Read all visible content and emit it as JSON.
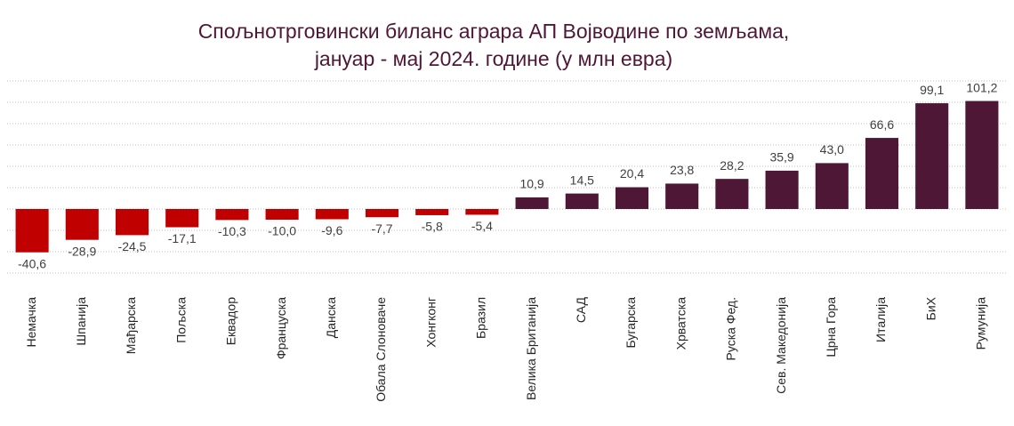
{
  "chart_data": {
    "type": "bar",
    "title": [
      "Спољнотрговински биланс аграра АП Војводине по земљама,",
      "јануар - мај 2024. године (у млн евра)"
    ],
    "categories": [
      "Немачка",
      "Шпанија",
      "Мађарска",
      "Пољска",
      "Еквадор",
      "Француска",
      "Данска",
      "Обала Слоноваче",
      "Хонгконг",
      "Бразил",
      "Велика Британија",
      "САД",
      "Бугарска",
      "Хрватска",
      "Руска Фед.",
      "Сев. Македонија",
      "Црна Гора",
      "Италија",
      "БиХ",
      "Румунија"
    ],
    "values": [
      -40.6,
      -28.9,
      -24.5,
      -17.1,
      -10.3,
      -10.0,
      -9.6,
      -7.7,
      -5.8,
      -5.4,
      10.9,
      14.5,
      20.4,
      23.8,
      28.2,
      35.9,
      43.0,
      66.6,
      99.1,
      101.2
    ],
    "value_labels": [
      "-40,6",
      "-28,9",
      "-24,5",
      "-17,1",
      "-10,3",
      "-10,0",
      "-9,6",
      "-7,7",
      "-5,8",
      "-5,4",
      "10,9",
      "14,5",
      "20,4",
      "23,8",
      "28,2",
      "35,9",
      "43,0",
      "66,6",
      "99,1",
      "101,2"
    ],
    "color_negative": "#c00000",
    "color_positive": "#4e1735",
    "ylim": [
      -60,
      120
    ],
    "yticks": [
      -60,
      -40,
      -20,
      0,
      20,
      40,
      60,
      80,
      100,
      120
    ],
    "grid": true
  }
}
